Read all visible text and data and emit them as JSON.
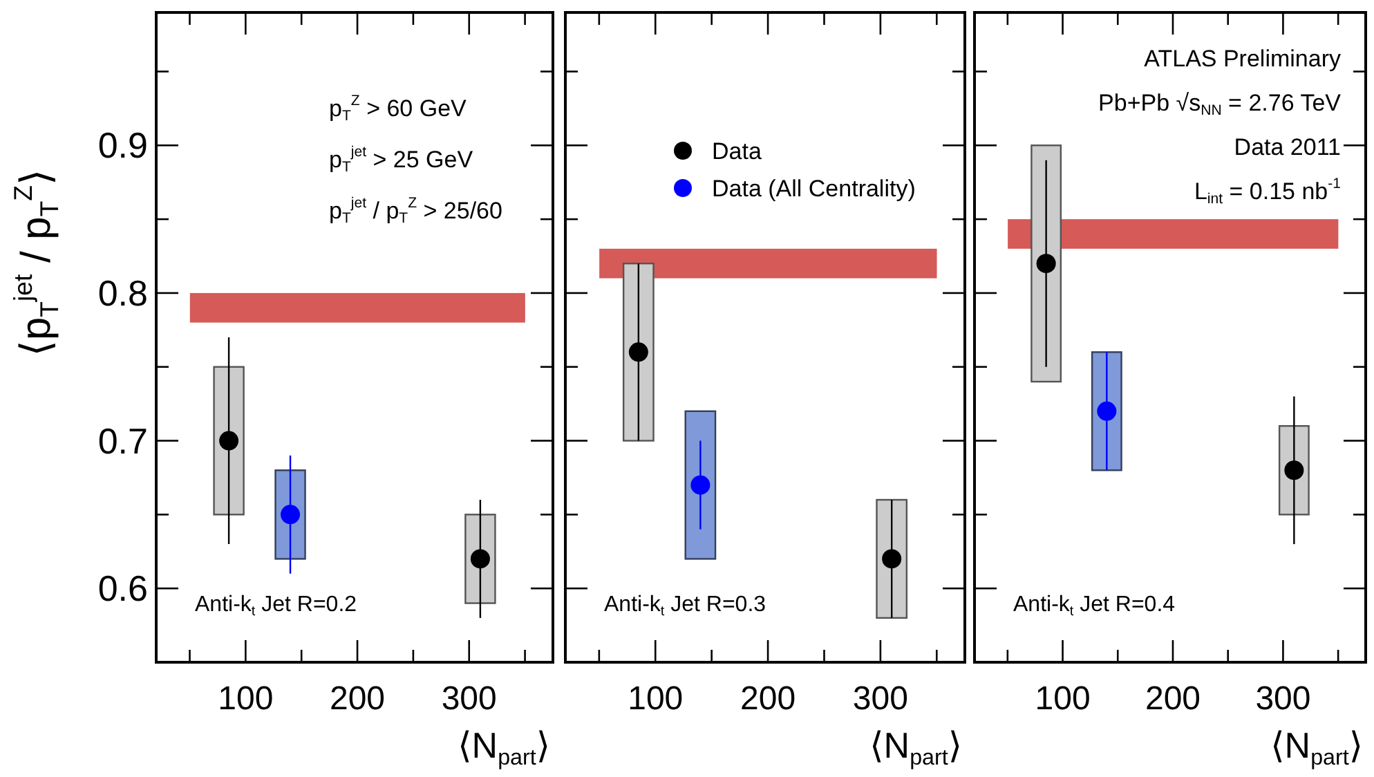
{
  "chart_data": [
    {
      "type": "scatter",
      "ylabel": "⟨p$_{T}$$^{jet}$ / p$_{T}$$^{Z}$⟩",
      "xlabel": "⟨N$_{part}$⟩",
      "xlim": [
        20,
        375
      ],
      "ylim": [
        0.55,
        0.99
      ],
      "xticks": [
        {
          "value": 50,
          "label": null
        },
        100,
        {
          "value": 150,
          "label": null
        },
        200,
        {
          "value": 250,
          "label": null
        },
        300,
        {
          "value": 350,
          "label": null
        }
      ],
      "yticks": [
        {
          "value": 0.55,
          "label": null
        },
        0.6,
        {
          "value": 0.65,
          "label": null
        },
        0.7,
        {
          "value": 0.75,
          "label": null
        },
        0.8,
        {
          "value": 0.85,
          "label": null
        },
        0.9,
        {
          "value": 0.95,
          "label": null
        }
      ],
      "marker": "circle",
      "legend": false,
      "bands": [
        {
          "axis": "y",
          "from": 0.78,
          "to": 0.8,
          "color": "#d55a58"
        }
      ],
      "annotations": [
        "p$_{T}$$^{Z}$ > 60 GeV",
        "p$_{T}$$^{jet}$ > 25 GeV",
        "p$_{T}$$^{jet}$ / p$_{T}$$^{Z}$ > 25/60",
        "Anti-k$_{t}$ Jet R=0.2"
      ],
      "series": [
        {
          "type": "bar",
          "color": "#cccccc",
          "x": [
            85,
            310
          ],
          "base": [
            0.65,
            0.59
          ],
          "values": [
            0.1,
            0.06
          ]
        },
        {
          "type": "bar",
          "color": "#7f99d9",
          "x": [
            140
          ],
          "base": [
            0.62
          ],
          "values": [
            0.06
          ]
        },
        {
          "color": "#000000",
          "x": [
            85,
            310
          ],
          "values": [
            0.7,
            0.62
          ],
          "errors": [
            [
              0.63,
              0.77
            ],
            [
              0.58,
              0.66
            ]
          ]
        },
        {
          "color": "#0000ff",
          "x": [
            140
          ],
          "values": [
            0.65
          ],
          "errors": [
            [
              0.61,
              0.69
            ]
          ]
        }
      ]
    },
    {
      "type": "scatter",
      "xlabel": "⟨N$_{part}$⟩",
      "xlim": [
        20,
        375
      ],
      "ylim": [
        0.55,
        0.99
      ],
      "tick_labels": "x",
      "xticks": [
        {
          "value": 50,
          "label": null
        },
        100,
        {
          "value": 150,
          "label": null
        },
        200,
        {
          "value": 250,
          "label": null
        },
        300,
        {
          "value": 350,
          "label": null
        }
      ],
      "yticks": [
        {
          "value": 0.55,
          "label": null
        },
        {
          "value": 0.6,
          "label": null
        },
        {
          "value": 0.65,
          "label": null
        },
        {
          "value": 0.7,
          "label": null
        },
        {
          "value": 0.75,
          "label": null
        },
        {
          "value": 0.8,
          "label": null
        },
        {
          "value": 0.85,
          "label": null
        },
        {
          "value": 0.9,
          "label": null
        },
        {
          "value": 0.95,
          "label": null
        }
      ],
      "marker": "circle",
      "legend": "top",
      "bands": [
        {
          "axis": "y",
          "from": 0.81,
          "to": 0.83,
          "color": "#d55a58"
        }
      ],
      "annotations": [
        "Anti-k$_{t}$ Jet R=0.3"
      ],
      "series": [
        {
          "type": "bar",
          "color": "#cccccc",
          "x": [
            85,
            310
          ],
          "base": [
            0.7,
            0.58
          ],
          "values": [
            0.12,
            0.08
          ]
        },
        {
          "type": "bar",
          "color": "#7f99d9",
          "x": [
            140
          ],
          "base": [
            0.62
          ],
          "values": [
            0.1
          ]
        },
        {
          "name": "Data",
          "color": "#000000",
          "x": [
            85,
            310
          ],
          "values": [
            0.76,
            0.62
          ],
          "errors": [
            [
              0.7,
              0.82
            ],
            [
              0.58,
              0.66
            ]
          ]
        },
        {
          "name": "Data (All Centrality)",
          "color": "#0000ff",
          "x": [
            140
          ],
          "values": [
            0.67
          ],
          "errors": [
            [
              0.64,
              0.7
            ]
          ]
        }
      ]
    },
    {
      "type": "scatter",
      "xlabel": "⟨N$_{part}$⟩",
      "xlim": [
        20,
        375
      ],
      "ylim": [
        0.55,
        0.99
      ],
      "tick_labels": "x",
      "xticks": [
        {
          "value": 50,
          "label": null
        },
        100,
        {
          "value": 150,
          "label": null
        },
        200,
        {
          "value": 250,
          "label": null
        },
        300,
        {
          "value": 350,
          "label": null
        }
      ],
      "yticks": [
        {
          "value": 0.55,
          "label": null
        },
        {
          "value": 0.6,
          "label": null
        },
        {
          "value": 0.65,
          "label": null
        },
        {
          "value": 0.7,
          "label": null
        },
        {
          "value": 0.75,
          "label": null
        },
        {
          "value": 0.8,
          "label": null
        },
        {
          "value": 0.85,
          "label": null
        },
        {
          "value": 0.9,
          "label": null
        },
        {
          "value": 0.95,
          "label": null
        }
      ],
      "marker": "circle",
      "legend": false,
      "bands": [
        {
          "axis": "y",
          "from": 0.83,
          "to": 0.85,
          "color": "#d55a58"
        }
      ],
      "annotations": [
        "ATLAS Preliminary",
        "Pb+Pb √s$_{NN}$ = 2.76 TeV",
        "Data 2011",
        "L$_{int}$ = 0.15 nb$^{-1}$",
        "Anti-k$_{t}$ Jet R=0.4"
      ],
      "series": [
        {
          "type": "bar",
          "color": "#cccccc",
          "x": [
            85,
            310
          ],
          "base": [
            0.74,
            0.65
          ],
          "values": [
            0.16,
            0.06
          ]
        },
        {
          "type": "bar",
          "color": "#7f99d9",
          "x": [
            140
          ],
          "base": [
            0.68
          ],
          "values": [
            0.08
          ]
        },
        {
          "color": "#000000",
          "x": [
            85,
            310
          ],
          "values": [
            0.82,
            0.68
          ],
          "errors": [
            [
              0.75,
              0.89
            ],
            [
              0.63,
              0.73
            ]
          ]
        },
        {
          "color": "#0000ff",
          "x": [
            140
          ],
          "values": [
            0.72
          ],
          "errors": [
            [
              0.68,
              0.76
            ]
          ]
        }
      ]
    }
  ]
}
